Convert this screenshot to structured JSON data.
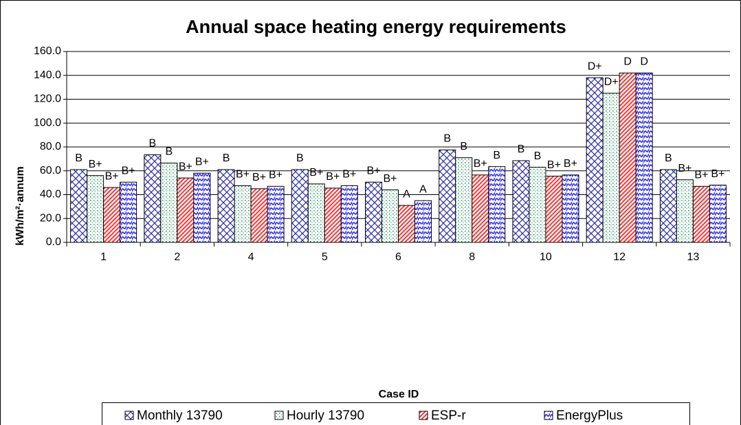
{
  "chart_data": {
    "type": "bar",
    "title": "Annual space heating energy requirements",
    "x_label": "Case ID",
    "y_label": "kWh/m²·annum",
    "categories": [
      "1",
      "2",
      "4",
      "5",
      "6",
      "8",
      "10",
      "12",
      "13"
    ],
    "series": [
      {
        "name": "Monthly 13790",
        "color": "#3333aa",
        "values": [
          61,
          73.5,
          61,
          61,
          50.5,
          77.5,
          68.5,
          138,
          61
        ],
        "ratings": [
          "B",
          "B",
          "B",
          "B",
          "B+",
          "B",
          "B",
          "D+",
          "B"
        ]
      },
      {
        "name": "Hourly 13790",
        "color": "#339966",
        "values": [
          56,
          66.5,
          47.5,
          49,
          44,
          71,
          63,
          125,
          52.5
        ],
        "ratings": [
          "B+",
          "B",
          "B+",
          "B+",
          "B+",
          "B",
          "B",
          "D+",
          "B+"
        ]
      },
      {
        "name": "ESP-r",
        "color": "#ff3333",
        "values": [
          46,
          54,
          45,
          45.5,
          31,
          56.5,
          55.5,
          142,
          47
        ],
        "ratings": [
          "B+",
          "B+",
          "B+",
          "B+",
          "A",
          "B+",
          "B+",
          "D",
          "B+"
        ]
      },
      {
        "name": "EnergyPlus",
        "color": "#3333ff",
        "values": [
          50.5,
          58,
          47,
          47.5,
          35,
          63.5,
          56.5,
          142,
          48
        ],
        "ratings": [
          "B+",
          "B+",
          "B+",
          "B+",
          "A",
          "B",
          "B+",
          "D",
          "B+"
        ]
      }
    ],
    "ylim": [
      0,
      160
    ],
    "yticks": [
      {
        "value": 0,
        "label": "0.0"
      },
      {
        "value": 20,
        "label": "20.0"
      },
      {
        "value": 40,
        "label": "40.0"
      },
      {
        "value": 60,
        "label": "60.0"
      },
      {
        "value": 80,
        "label": "80.0"
      },
      {
        "value": 100,
        "label": "100.0"
      },
      {
        "value": 120,
        "label": "120.0"
      },
      {
        "value": 140,
        "label": "140.0"
      },
      {
        "value": 160,
        "label": "160.0"
      }
    ],
    "grid": true,
    "legend": "bottom"
  }
}
